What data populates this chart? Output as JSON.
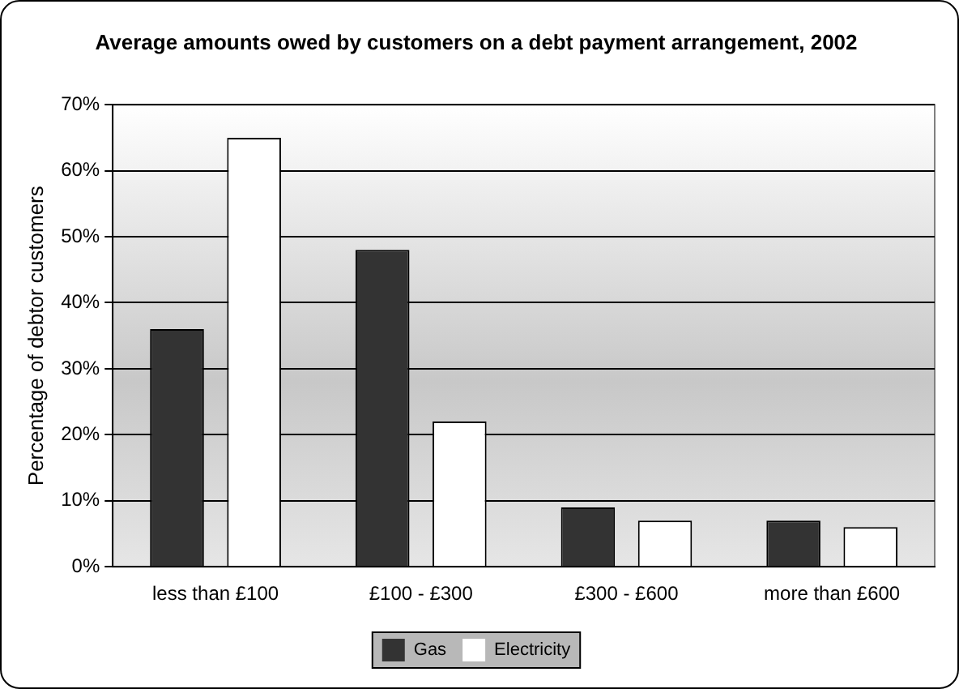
{
  "chart_data": {
    "type": "bar",
    "title": "Average amounts owed by customers on a debt payment arrangement, 2002",
    "ylabel": "Percentage of debtor customers",
    "categories": [
      "less than £100",
      "£100 - £300",
      "£300 - £600",
      "more than £600"
    ],
    "series": [
      {
        "name": "Gas",
        "color": "#333333",
        "values": [
          36,
          48,
          9,
          7
        ]
      },
      {
        "name": "Electricity",
        "color": "#ffffff",
        "values": [
          65,
          22,
          7,
          6
        ]
      }
    ],
    "ylim": [
      0,
      70
    ],
    "yticks": [
      {
        "value": 0,
        "label": "0%"
      },
      {
        "value": 10,
        "label": "10%"
      },
      {
        "value": 20,
        "label": "20%"
      },
      {
        "value": 30,
        "label": "30%"
      },
      {
        "value": 40,
        "label": "40%"
      },
      {
        "value": 50,
        "label": "50%"
      },
      {
        "value": 60,
        "label": "60%"
      },
      {
        "value": 70,
        "label": "70%"
      }
    ],
    "grid": "y",
    "legend": "bottom"
  }
}
